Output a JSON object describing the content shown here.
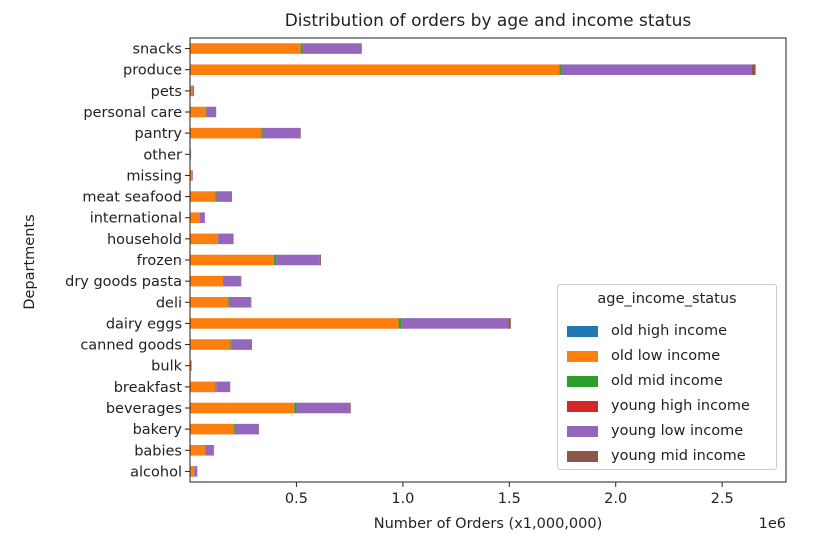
{
  "chart_data": {
    "type": "bar",
    "orientation": "horizontal",
    "stacked": true,
    "title": "Distribution of orders by age and income status",
    "xlabel": "Number of Orders (x1,000,000)",
    "ylabel": "Departments",
    "x_offset_label": "1e6",
    "xlim": [
      0,
      2800000
    ],
    "x_ticks": [
      500000,
      1000000,
      1500000,
      2000000,
      2500000
    ],
    "x_tick_labels": [
      "0.5",
      "1.0",
      "1.5",
      "2.0",
      "2.5"
    ],
    "grid": false,
    "legend": {
      "title": "age_income_status",
      "placement": "lower-right"
    },
    "categories": [
      "alcohol",
      "babies",
      "bakery",
      "beverages",
      "breakfast",
      "bulk",
      "canned goods",
      "dairy eggs",
      "deli",
      "dry goods pasta",
      "frozen",
      "household",
      "international",
      "meat seafood",
      "missing",
      "other",
      "pantry",
      "personal care",
      "pets",
      "produce",
      "snacks"
    ],
    "series": [
      {
        "name": "old high income",
        "color": "#1f77b4",
        "values": [
          0,
          0,
          0,
          0,
          0,
          0,
          0,
          0,
          0,
          0,
          0,
          0,
          0,
          0,
          0,
          0,
          0,
          0,
          0,
          0,
          0
        ]
      },
      {
        "name": "old low income",
        "color": "#ff7f0e",
        "values": [
          20000,
          70000,
          205000,
          490000,
          120000,
          5000,
          190000,
          980000,
          180000,
          155000,
          395000,
          130000,
          45000,
          120000,
          8000,
          3000,
          335000,
          75000,
          12000,
          1735000,
          520000
        ]
      },
      {
        "name": "old mid income",
        "color": "#2ca02c",
        "values": [
          1000,
          2000,
          6000,
          10000,
          3000,
          0,
          4000,
          15000,
          6000,
          4000,
          10000,
          3000,
          1000,
          5000,
          0,
          0,
          7000,
          2000,
          0,
          12000,
          9000
        ]
      },
      {
        "name": "young high income",
        "color": "#d62728",
        "values": [
          0,
          0,
          0,
          0,
          0,
          0,
          0,
          0,
          0,
          0,
          0,
          0,
          0,
          0,
          0,
          0,
          0,
          0,
          0,
          0,
          0
        ]
      },
      {
        "name": "young low income",
        "color": "#9467bd",
        "values": [
          12000,
          40000,
          110000,
          250000,
          65000,
          3000,
          95000,
          500000,
          100000,
          80000,
          205000,
          70000,
          24000,
          70000,
          5000,
          2000,
          175000,
          45000,
          7000,
          890000,
          275000
        ]
      },
      {
        "name": "young mid income",
        "color": "#8c564b",
        "values": [
          1000,
          1000,
          3000,
          5000,
          1000,
          0,
          2000,
          12000,
          2000,
          2000,
          5000,
          2000,
          0,
          2000,
          0,
          0,
          3000,
          1000,
          0,
          20000,
          3000
        ]
      }
    ]
  }
}
